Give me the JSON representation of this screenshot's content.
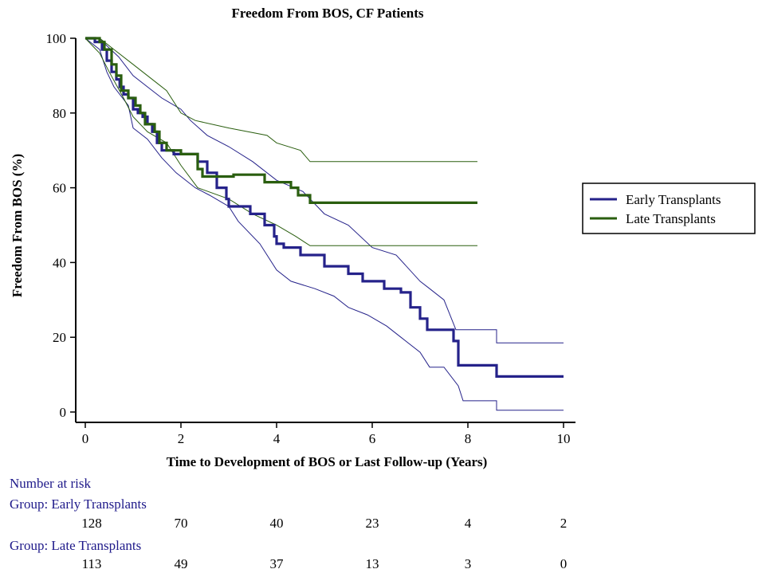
{
  "chart_data": {
    "type": "line",
    "title": "Freedom From BOS, CF Patients",
    "xlabel": "Time to Development of BOS or Last Follow-up (Years)",
    "ylabel": "Freedom From BOS (%)",
    "xlim": [
      0,
      10
    ],
    "ylim": [
      0,
      100
    ],
    "xticks": [
      0,
      2,
      4,
      6,
      8,
      10
    ],
    "yticks": [
      0,
      20,
      40,
      60,
      80,
      100
    ],
    "legend_position": "right",
    "series": [
      {
        "name": "Early Transplants",
        "color": "#25228a",
        "points": [
          [
            0,
            100
          ],
          [
            0.2,
            100
          ],
          [
            0.2,
            99
          ],
          [
            0.35,
            99
          ],
          [
            0.35,
            97
          ],
          [
            0.45,
            97
          ],
          [
            0.45,
            94
          ],
          [
            0.55,
            94
          ],
          [
            0.55,
            91
          ],
          [
            0.65,
            91
          ],
          [
            0.65,
            89
          ],
          [
            0.72,
            89
          ],
          [
            0.72,
            87
          ],
          [
            0.8,
            87
          ],
          [
            0.8,
            85
          ],
          [
            0.9,
            85
          ],
          [
            0.9,
            84
          ],
          [
            1.0,
            84
          ],
          [
            1.0,
            81
          ],
          [
            1.1,
            81
          ],
          [
            1.1,
            80
          ],
          [
            1.2,
            80
          ],
          [
            1.2,
            79
          ],
          [
            1.3,
            79
          ],
          [
            1.3,
            77
          ],
          [
            1.4,
            77
          ],
          [
            1.4,
            75
          ],
          [
            1.5,
            75
          ],
          [
            1.5,
            72
          ],
          [
            1.6,
            72
          ],
          [
            1.6,
            70
          ],
          [
            1.85,
            70
          ],
          [
            1.85,
            69
          ],
          [
            2.35,
            69
          ],
          [
            2.35,
            67
          ],
          [
            2.55,
            67
          ],
          [
            2.55,
            64
          ],
          [
            2.75,
            64
          ],
          [
            2.75,
            60
          ],
          [
            2.95,
            60
          ],
          [
            2.95,
            57
          ],
          [
            3.0,
            57
          ],
          [
            3.0,
            55
          ],
          [
            3.45,
            55
          ],
          [
            3.45,
            53
          ],
          [
            3.75,
            53
          ],
          [
            3.75,
            50
          ],
          [
            3.95,
            50
          ],
          [
            3.95,
            47
          ],
          [
            4.0,
            47
          ],
          [
            4.0,
            45
          ],
          [
            4.15,
            45
          ],
          [
            4.15,
            44
          ],
          [
            4.5,
            44
          ],
          [
            4.5,
            42
          ],
          [
            5.0,
            42
          ],
          [
            5.0,
            39
          ],
          [
            5.5,
            39
          ],
          [
            5.5,
            37
          ],
          [
            5.8,
            37
          ],
          [
            5.8,
            35
          ],
          [
            6.25,
            35
          ],
          [
            6.25,
            33
          ],
          [
            6.6,
            33
          ],
          [
            6.6,
            32
          ],
          [
            6.8,
            32
          ],
          [
            6.8,
            28
          ],
          [
            7.0,
            28
          ],
          [
            7.0,
            25
          ],
          [
            7.15,
            25
          ],
          [
            7.15,
            22
          ],
          [
            7.7,
            22
          ],
          [
            7.7,
            19
          ],
          [
            7.8,
            19
          ],
          [
            7.8,
            12.5
          ],
          [
            8.6,
            12.5
          ],
          [
            8.6,
            9.5
          ],
          [
            10.0,
            9.5
          ]
        ],
        "ci_upper": [
          [
            0,
            100
          ],
          [
            0.3,
            100
          ],
          [
            0.45,
            98
          ],
          [
            0.7,
            95
          ],
          [
            1.0,
            90
          ],
          [
            1.3,
            87
          ],
          [
            1.6,
            84
          ],
          [
            2.0,
            81
          ],
          [
            2.2,
            78
          ],
          [
            2.55,
            74
          ],
          [
            3.0,
            71
          ],
          [
            3.5,
            67
          ],
          [
            4.0,
            62
          ],
          [
            4.55,
            59
          ],
          [
            5.0,
            53
          ],
          [
            5.5,
            50
          ],
          [
            6.0,
            44
          ],
          [
            6.5,
            42
          ],
          [
            7.0,
            35
          ],
          [
            7.2,
            33
          ],
          [
            7.5,
            30
          ],
          [
            7.75,
            22
          ],
          [
            8.6,
            22
          ],
          [
            8.6,
            18.5
          ],
          [
            10.0,
            18.5
          ]
        ],
        "ci_lower": [
          [
            0,
            100
          ],
          [
            0.3,
            97
          ],
          [
            0.45,
            91
          ],
          [
            0.6,
            87
          ],
          [
            0.9,
            82
          ],
          [
            1.0,
            76
          ],
          [
            1.3,
            73
          ],
          [
            1.6,
            68
          ],
          [
            1.9,
            64
          ],
          [
            2.3,
            60
          ],
          [
            2.6,
            58
          ],
          [
            3.0,
            55
          ],
          [
            3.2,
            51
          ],
          [
            3.65,
            45
          ],
          [
            4.0,
            38
          ],
          [
            4.3,
            35
          ],
          [
            4.8,
            33
          ],
          [
            5.2,
            31
          ],
          [
            5.5,
            28
          ],
          [
            5.9,
            26
          ],
          [
            6.3,
            23
          ],
          [
            6.6,
            20
          ],
          [
            7.0,
            16
          ],
          [
            7.2,
            12
          ],
          [
            7.5,
            12
          ],
          [
            7.8,
            7
          ],
          [
            7.9,
            3
          ],
          [
            8.6,
            3
          ],
          [
            8.6,
            0.5
          ],
          [
            10.0,
            0.5
          ]
        ]
      },
      {
        "name": "Late Transplants",
        "color": "#2a5e0f",
        "points": [
          [
            0,
            100
          ],
          [
            0.3,
            100
          ],
          [
            0.3,
            99
          ],
          [
            0.4,
            99
          ],
          [
            0.4,
            97
          ],
          [
            0.55,
            97
          ],
          [
            0.55,
            93
          ],
          [
            0.65,
            93
          ],
          [
            0.65,
            90
          ],
          [
            0.75,
            90
          ],
          [
            0.75,
            86
          ],
          [
            0.9,
            86
          ],
          [
            0.9,
            84
          ],
          [
            1.05,
            84
          ],
          [
            1.05,
            82
          ],
          [
            1.15,
            82
          ],
          [
            1.15,
            80
          ],
          [
            1.25,
            80
          ],
          [
            1.25,
            77
          ],
          [
            1.45,
            77
          ],
          [
            1.45,
            75
          ],
          [
            1.55,
            75
          ],
          [
            1.55,
            72
          ],
          [
            1.7,
            72
          ],
          [
            1.7,
            70
          ],
          [
            2.0,
            70
          ],
          [
            2.0,
            69
          ],
          [
            2.35,
            69
          ],
          [
            2.35,
            65
          ],
          [
            2.45,
            65
          ],
          [
            2.45,
            63
          ],
          [
            3.1,
            63
          ],
          [
            3.1,
            63.5
          ],
          [
            3.75,
            63.5
          ],
          [
            3.75,
            61.5
          ],
          [
            4.3,
            61.5
          ],
          [
            4.3,
            60
          ],
          [
            4.45,
            60
          ],
          [
            4.45,
            58
          ],
          [
            4.7,
            58
          ],
          [
            4.7,
            56
          ],
          [
            8.2,
            56
          ]
        ],
        "ci_upper": [
          [
            0,
            100
          ],
          [
            0.3,
            100
          ],
          [
            0.6,
            97
          ],
          [
            1.0,
            93
          ],
          [
            1.5,
            88
          ],
          [
            1.7,
            86
          ],
          [
            2.0,
            80
          ],
          [
            2.3,
            78
          ],
          [
            3.0,
            76
          ],
          [
            3.8,
            74
          ],
          [
            4.0,
            72
          ],
          [
            4.5,
            70
          ],
          [
            4.7,
            67
          ],
          [
            8.2,
            67
          ]
        ],
        "ci_lower": [
          [
            0,
            100
          ],
          [
            0.3,
            96
          ],
          [
            0.5,
            91
          ],
          [
            0.8,
            84
          ],
          [
            1.0,
            79
          ],
          [
            1.3,
            75
          ],
          [
            1.7,
            72
          ],
          [
            2.0,
            66
          ],
          [
            2.35,
            60
          ],
          [
            3.0,
            57
          ],
          [
            3.5,
            53
          ],
          [
            4.0,
            50
          ],
          [
            4.4,
            47
          ],
          [
            4.7,
            44.5
          ],
          [
            8.2,
            44.5
          ]
        ]
      }
    ],
    "risk_table": {
      "header": "Number at risk",
      "x": [
        0,
        2,
        4,
        6,
        8,
        10
      ],
      "groups": [
        {
          "label": "Group: Early Transplants",
          "values": [
            "128",
            "70",
            "40",
            "23",
            "4",
            "2"
          ]
        },
        {
          "label": "Group: Late Transplants",
          "values": [
            "113",
            "49",
            "37",
            "13",
            "3",
            "0"
          ]
        }
      ]
    }
  }
}
